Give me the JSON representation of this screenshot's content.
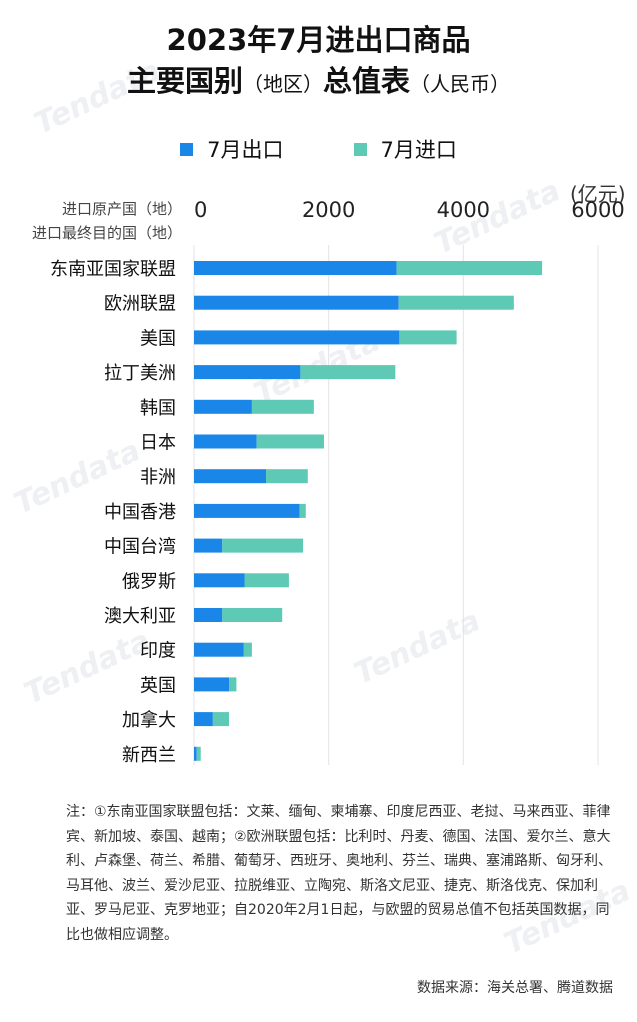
{
  "title": {
    "line1": "2023年7月进出口商品",
    "line2_a": "主要国别",
    "line2_b": "（地区）",
    "line2_c": "总值表",
    "line2_d": "（人民币）"
  },
  "axis_caption": {
    "line1": "进口原产国（地）",
    "line2": "进口最终目的国（地）"
  },
  "unit": "(亿元)",
  "watermark": "Tendata",
  "colors": {
    "export": "#1a86e8",
    "import": "#5ec9b4",
    "grid": "#e3e3e3"
  },
  "chart_data": {
    "type": "bar",
    "orientation": "horizontal",
    "stacked": true,
    "xlim": [
      0,
      6000
    ],
    "xticks": [
      "0",
      "2000",
      "4000",
      "6000"
    ],
    "categories": [
      "东南亚国家联盟",
      "欧洲联盟",
      "美国",
      "拉丁美洲",
      "韩国",
      "日本",
      "非洲",
      "中国香港",
      "中国台湾",
      "俄罗斯",
      "澳大利亚",
      "印度",
      "英国",
      "加拿大",
      "新西兰"
    ],
    "series": [
      {
        "name": "7月出口",
        "values": [
          3010,
          3040,
          3050,
          1580,
          860,
          930,
          1070,
          1570,
          420,
          750,
          420,
          740,
          520,
          280,
          40
        ]
      },
      {
        "name": "7月进口",
        "values": [
          2160,
          1710,
          850,
          1410,
          920,
          1000,
          620,
          90,
          1200,
          660,
          890,
          120,
          110,
          240,
          60
        ]
      }
    ],
    "legend_position": "top",
    "grid": true
  },
  "note": "注：①东南亚国家联盟包括：文莱、缅甸、柬埔寨、印度尼西亚、老挝、马来西亚、菲律宾、新加坡、泰国、越南；②欧洲联盟包括：比利时、丹麦、德国、法国、爱尔兰、意大利、卢森堡、荷兰、希腊、葡萄牙、西班牙、奥地利、芬兰、瑞典、塞浦路斯、匈牙利、马耳他、波兰、爱沙尼亚、拉脱维亚、立陶宛、斯洛文尼亚、捷克、斯洛伐克、保加利亚、罗马尼亚、克罗地亚；自2020年2月1日起，与欧盟的贸易总值不包括英国数据，同比也做相应调整。",
  "source": "数据来源：海关总署、腾道数据"
}
